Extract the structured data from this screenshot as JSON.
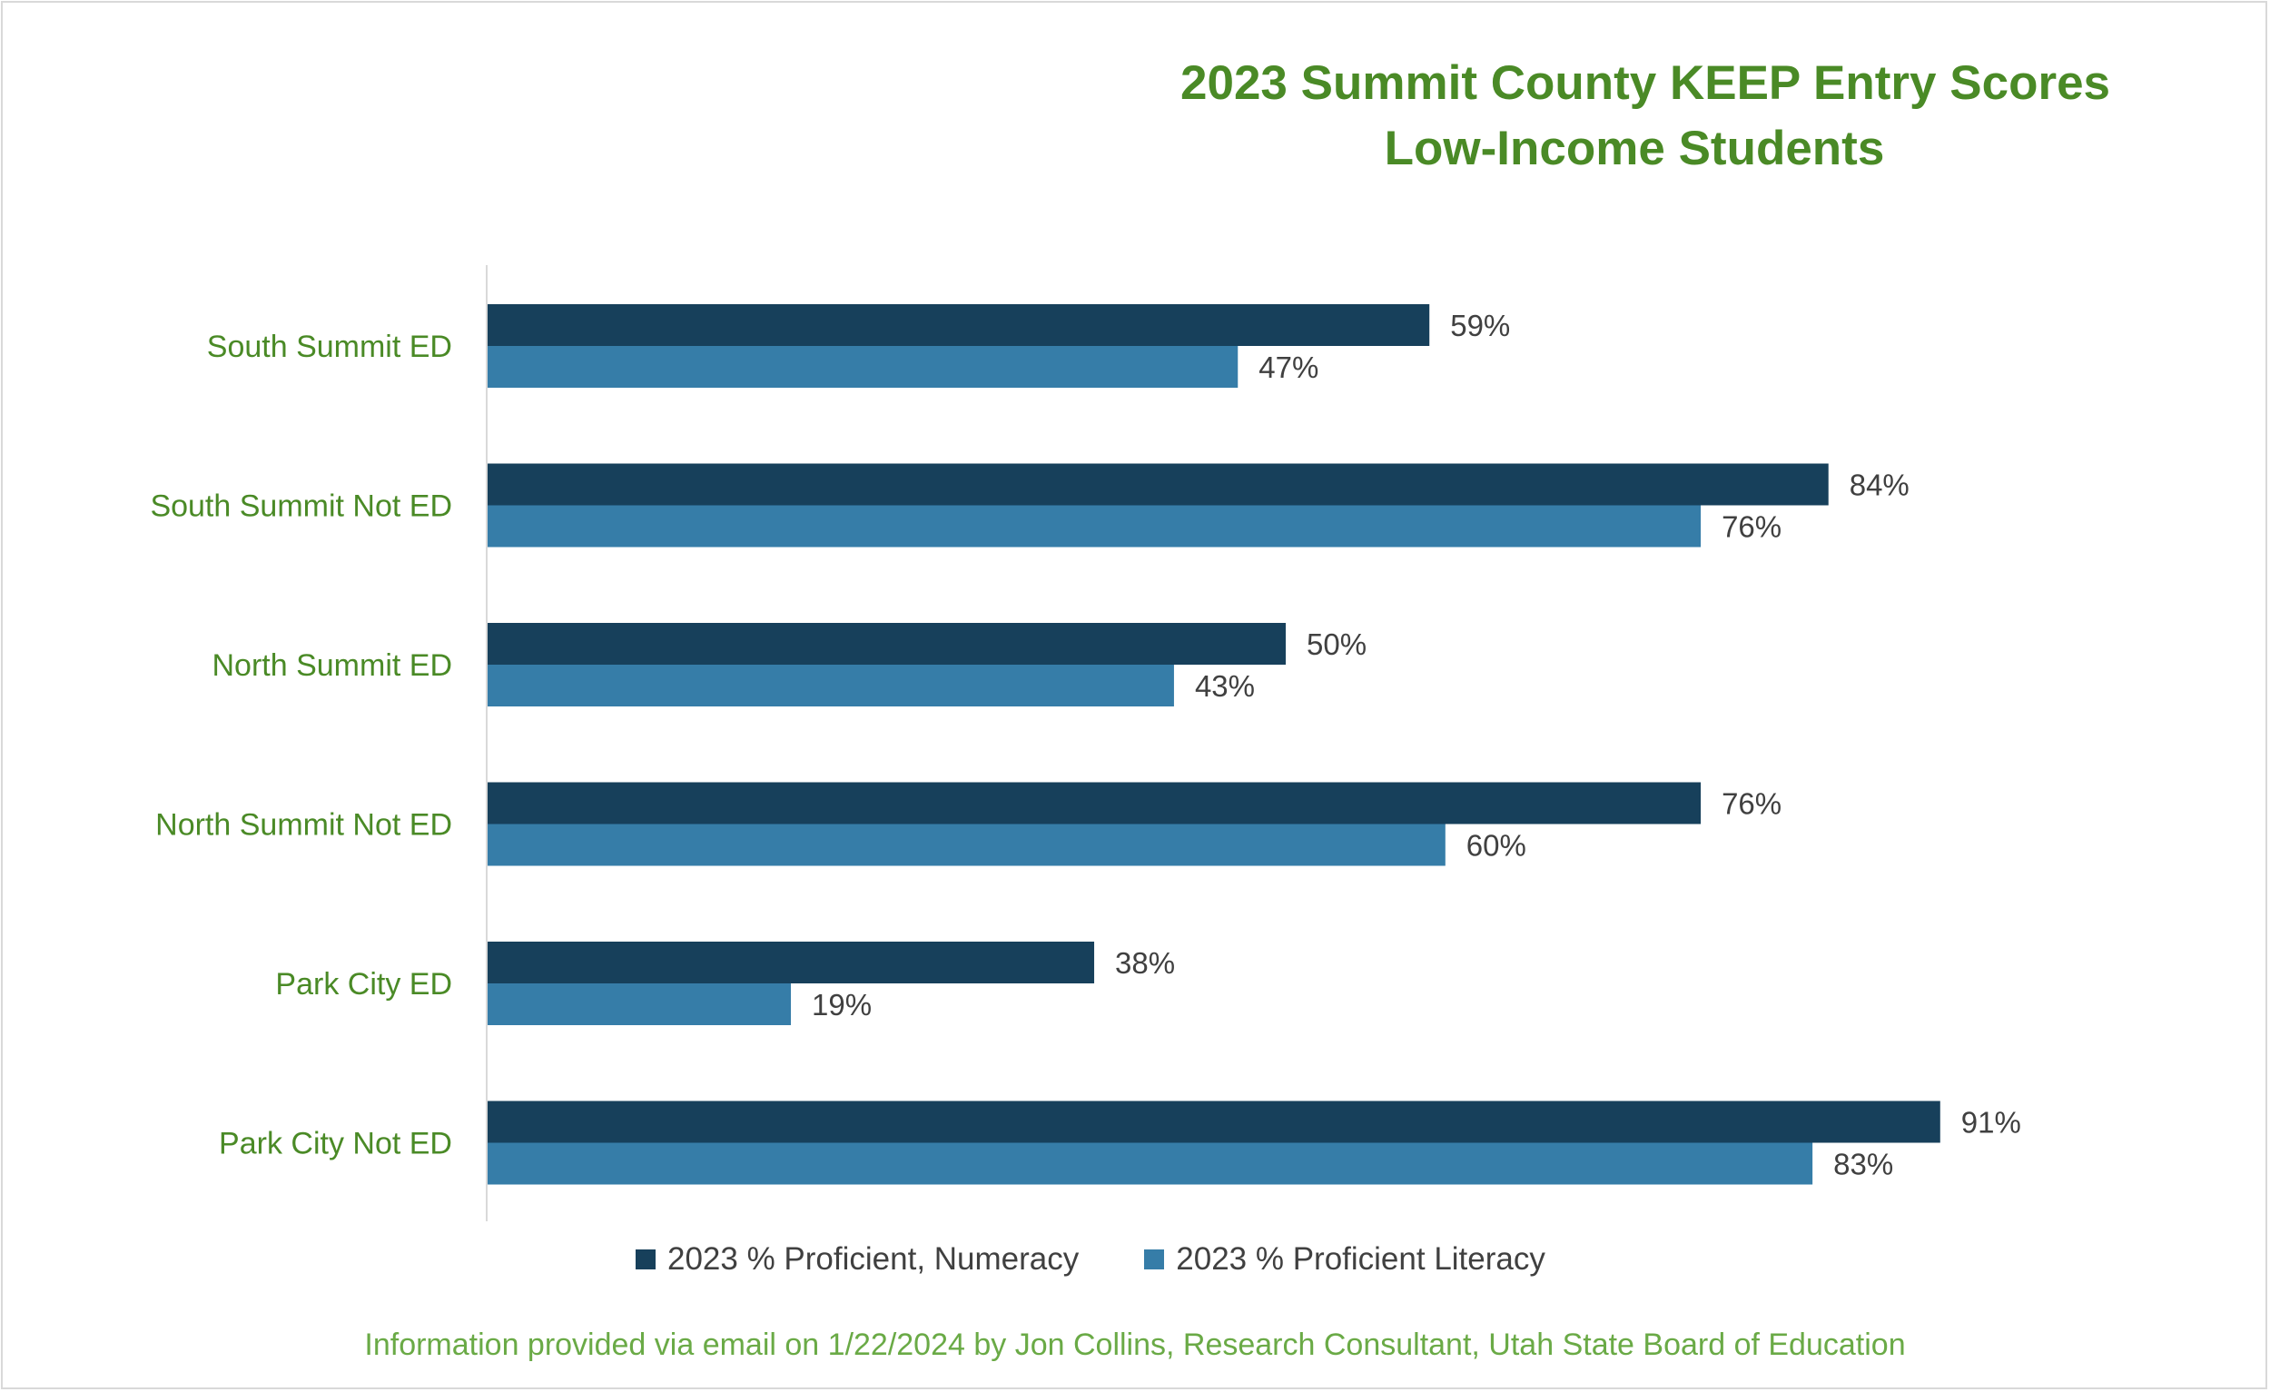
{
  "chart_data": {
    "type": "bar",
    "orientation": "horizontal",
    "title": "2023 Summit County KEEP Entry Scores",
    "subtitle": "Low-Income Students",
    "categories": [
      "South Summit ED",
      "South Summit Not ED",
      "North Summit ED",
      "North Summit Not ED",
      "Park City ED",
      "Park City Not ED"
    ],
    "series": [
      {
        "name": "2023 % Proficient, Numeracy",
        "values": [
          59,
          84,
          50,
          76,
          38,
          91
        ],
        "labels": [
          "59%",
          "84%",
          "50%",
          "76%",
          "38%",
          "91%"
        ],
        "color": "#17405b"
      },
      {
        "name": "2023 % Proficient Literacy",
        "values": [
          47,
          76,
          43,
          60,
          19,
          83
        ],
        "labels": [
          "47%",
          "76%",
          "43%",
          "60%",
          "19%",
          "83%"
        ],
        "color": "#367da8"
      }
    ],
    "xlim": [
      0,
      100
    ],
    "legend_position": "bottom",
    "grid": false
  },
  "colors": {
    "title": "#4a8a26",
    "category_label": "#4a8a26",
    "footer": "#6aaa46",
    "data_label": "#404040",
    "axis": "#d9d9d9"
  },
  "footer": "Information provided via email on 1/22/2024 by Jon Collins, Research Consultant, Utah State Board of Education"
}
